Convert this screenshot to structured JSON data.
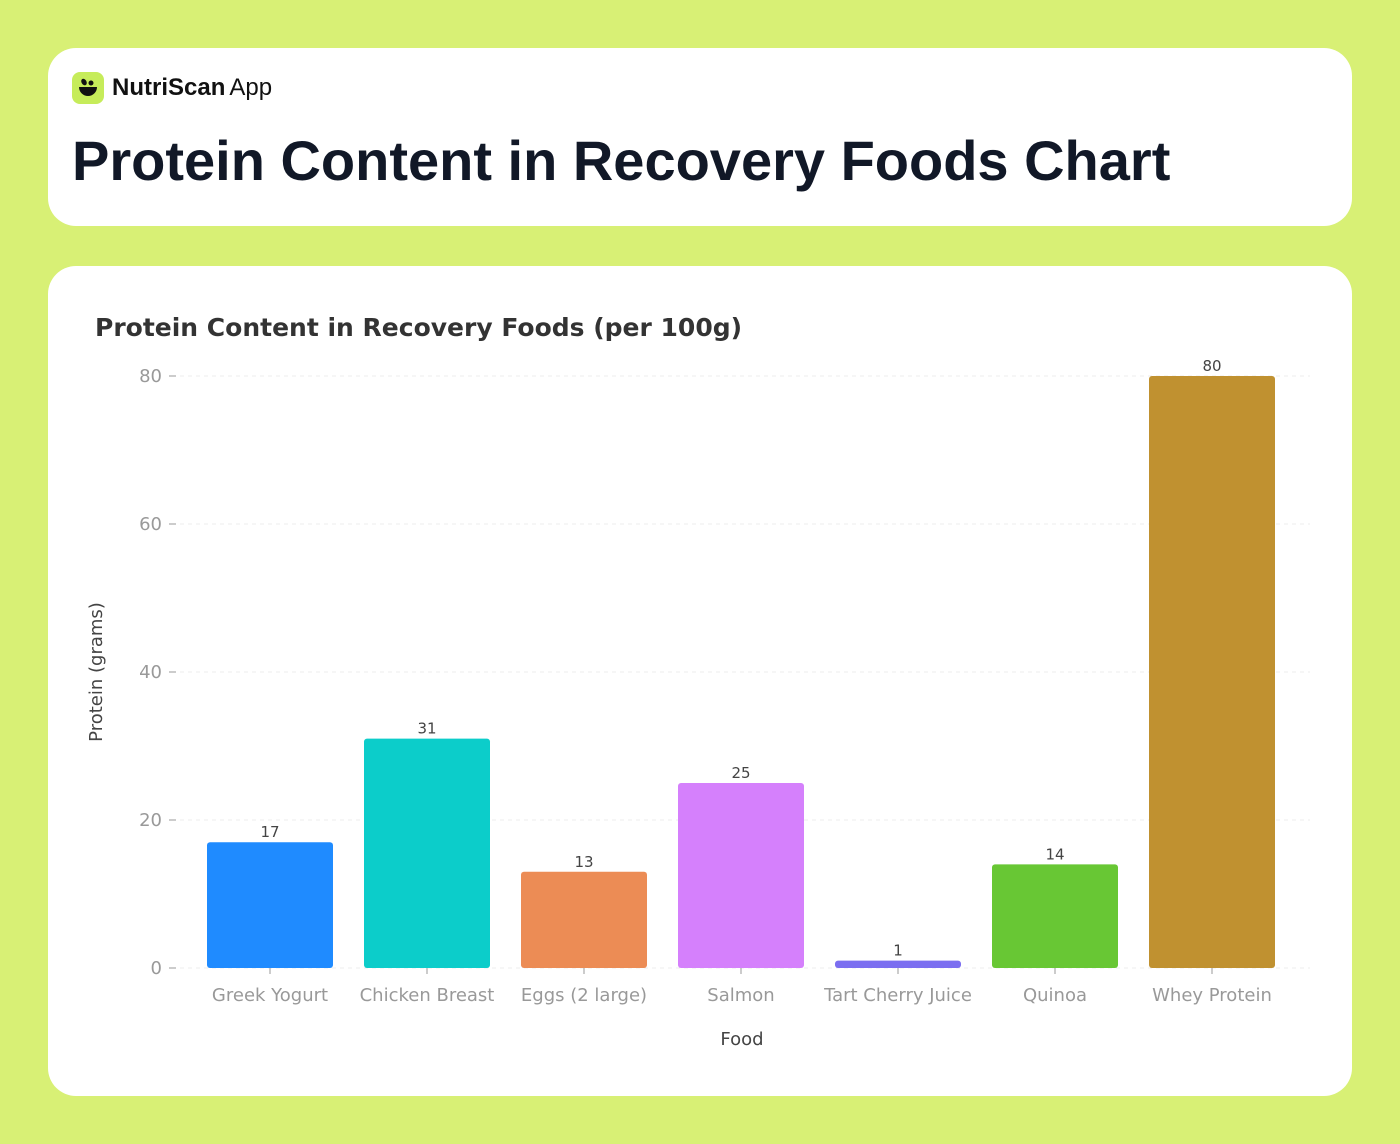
{
  "app": {
    "name_bold": "NutriScan",
    "name_rest": "App",
    "logo_icon": "leaf-bowl-icon"
  },
  "header": {
    "title": "Protein Content in Recovery Foods Chart"
  },
  "colors": {
    "background": "#d8f075",
    "accent": "#c6ec5a"
  },
  "chart_data": {
    "type": "bar",
    "title": "Protein Content in Recovery Foods (per 100g)",
    "xlabel": "Food",
    "ylabel": "Protein (grams)",
    "ylim": [
      0,
      80
    ],
    "yticks": [
      0,
      20,
      40,
      60,
      80
    ],
    "grid": true,
    "categories": [
      "Greek Yogurt",
      "Chicken Breast",
      "Eggs (2 large)",
      "Salmon",
      "Tart Cherry Juice",
      "Quinoa",
      "Whey Protein"
    ],
    "values": [
      17,
      31,
      13,
      25,
      1,
      14,
      80
    ],
    "colors": [
      "#1f8bff",
      "#0ccdca",
      "#ec8c55",
      "#d580fc",
      "#7b6ef0",
      "#68c734",
      "#c09130"
    ]
  }
}
